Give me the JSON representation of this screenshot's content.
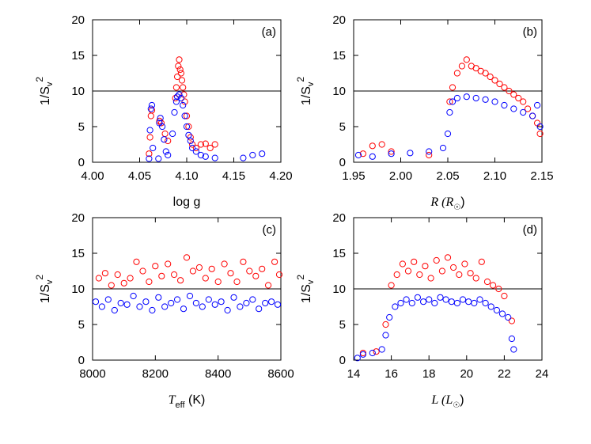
{
  "chart_data": [
    {
      "type": "scatter",
      "panel_label": "(a)",
      "xlabel": "log g",
      "ylabel": "1/S",
      "xlim": [
        4.0,
        4.2
      ],
      "ylim": [
        0,
        20
      ],
      "xticks": [
        4.0,
        4.05,
        4.1,
        4.15,
        4.2
      ],
      "xtick_labels": [
        "4.00",
        "4.05",
        "4.10",
        "4.15",
        "4.20"
      ],
      "yticks": [
        0,
        5,
        10,
        15,
        20
      ],
      "ytick_labels": [
        "0",
        "5",
        "10",
        "15",
        "20"
      ],
      "reference_line_y": 10,
      "series": [
        {
          "name": "red",
          "color": "#ff0000",
          "values": [
            [
              4.06,
              1.2
            ],
            [
              4.061,
              3.5
            ],
            [
              4.062,
              6.5
            ],
            [
              4.063,
              7.3
            ],
            [
              4.071,
              5.8
            ],
            [
              4.073,
              5.5
            ],
            [
              4.077,
              4.0
            ],
            [
              4.08,
              3.0
            ],
            [
              4.088,
              9.0
            ],
            [
              4.089,
              10.5
            ],
            [
              4.09,
              12.0
            ],
            [
              4.091,
              13.5
            ],
            [
              4.092,
              14.4
            ],
            [
              4.093,
              13.0
            ],
            [
              4.094,
              12.5
            ],
            [
              4.095,
              11.5
            ],
            [
              4.096,
              10.5
            ],
            [
              4.097,
              9.5
            ],
            [
              4.098,
              8.5
            ],
            [
              4.1,
              6.5
            ],
            [
              4.102,
              5.0
            ],
            [
              4.104,
              3.5
            ],
            [
              4.106,
              2.5
            ],
            [
              4.11,
              2.0
            ],
            [
              4.115,
              2.5
            ],
            [
              4.12,
              2.6
            ],
            [
              4.125,
              2.0
            ],
            [
              4.13,
              2.5
            ]
          ]
        },
        {
          "name": "blue",
          "color": "#0000ff",
          "values": [
            [
              4.06,
              0.5
            ],
            [
              4.061,
              4.5
            ],
            [
              4.062,
              7.5
            ],
            [
              4.063,
              8.0
            ],
            [
              4.064,
              2.0
            ],
            [
              4.07,
              0.5
            ],
            [
              4.071,
              5.5
            ],
            [
              4.072,
              6.2
            ],
            [
              4.074,
              5.0
            ],
            [
              4.076,
              3.2
            ],
            [
              4.078,
              1.5
            ],
            [
              4.08,
              1.0
            ],
            [
              4.085,
              4.0
            ],
            [
              4.087,
              7.0
            ],
            [
              4.089,
              8.5
            ],
            [
              4.09,
              9.2
            ],
            [
              4.092,
              9.5
            ],
            [
              4.094,
              9.0
            ],
            [
              4.096,
              8.0
            ],
            [
              4.098,
              6.5
            ],
            [
              4.1,
              5.0
            ],
            [
              4.102,
              3.8
            ],
            [
              4.104,
              3.0
            ],
            [
              4.106,
              2.0
            ],
            [
              4.11,
              1.5
            ],
            [
              4.115,
              1.0
            ],
            [
              4.12,
              0.8
            ],
            [
              4.13,
              0.6
            ],
            [
              4.16,
              0.6
            ],
            [
              4.17,
              1.0
            ],
            [
              4.18,
              1.2
            ]
          ]
        }
      ]
    },
    {
      "type": "scatter",
      "panel_label": "(b)",
      "xlabel": "R (R",
      "xlabel_sub": "☉",
      "ylabel": "1/S",
      "xlim": [
        1.95,
        2.15
      ],
      "ylim": [
        0,
        20
      ],
      "xticks": [
        1.95,
        2.0,
        2.05,
        2.1,
        2.15
      ],
      "xtick_labels": [
        "1.95",
        "2.00",
        "2.05",
        "2.10",
        "2.15"
      ],
      "yticks": [
        0,
        5,
        10,
        15,
        20
      ],
      "ytick_labels": [
        "0",
        "5",
        "10",
        "15",
        "20"
      ],
      "reference_line_y": 10,
      "series": [
        {
          "name": "red",
          "color": "#ff0000",
          "values": [
            [
              1.96,
              1.2
            ],
            [
              1.97,
              2.3
            ],
            [
              1.98,
              2.5
            ],
            [
              1.99,
              1.5
            ],
            [
              2.03,
              1.0
            ],
            [
              2.052,
              8.5
            ],
            [
              2.055,
              10.5
            ],
            [
              2.06,
              12.5
            ],
            [
              2.065,
              13.5
            ],
            [
              2.07,
              14.4
            ],
            [
              2.075,
              13.5
            ],
            [
              2.08,
              13.2
            ],
            [
              2.085,
              12.8
            ],
            [
              2.09,
              12.5
            ],
            [
              2.095,
              12.0
            ],
            [
              2.1,
              11.5
            ],
            [
              2.105,
              11.0
            ],
            [
              2.11,
              10.5
            ],
            [
              2.115,
              10.0
            ],
            [
              2.12,
              9.5
            ],
            [
              2.125,
              9.0
            ],
            [
              2.13,
              8.5
            ],
            [
              2.135,
              7.5
            ],
            [
              2.14,
              6.5
            ],
            [
              2.145,
              5.5
            ],
            [
              2.148,
              4.0
            ]
          ]
        },
        {
          "name": "blue",
          "color": "#0000ff",
          "values": [
            [
              1.955,
              1.0
            ],
            [
              1.97,
              0.8
            ],
            [
              1.99,
              1.2
            ],
            [
              2.01,
              1.3
            ],
            [
              2.03,
              1.5
            ],
            [
              2.045,
              2.0
            ],
            [
              2.05,
              4.0
            ],
            [
              2.052,
              7.0
            ],
            [
              2.055,
              8.5
            ],
            [
              2.06,
              9.0
            ],
            [
              2.07,
              9.2
            ],
            [
              2.08,
              9.0
            ],
            [
              2.09,
              8.8
            ],
            [
              2.1,
              8.5
            ],
            [
              2.11,
              8.0
            ],
            [
              2.12,
              7.5
            ],
            [
              2.13,
              7.0
            ],
            [
              2.14,
              6.5
            ],
            [
              2.145,
              8.0
            ],
            [
              2.148,
              5.0
            ]
          ]
        }
      ]
    },
    {
      "type": "scatter",
      "panel_label": "(c)",
      "xlabel": "T",
      "xlabel_sub": "eff",
      "xlabel_rest": " (K)",
      "ylabel": "1/S",
      "xlim": [
        8000,
        8600
      ],
      "ylim": [
        0,
        20
      ],
      "xticks": [
        8000,
        8200,
        8400,
        8600
      ],
      "xtick_labels": [
        "8000",
        "8200",
        "8400",
        "8600"
      ],
      "yticks": [
        0,
        5,
        10,
        15,
        20
      ],
      "ytick_labels": [
        "0",
        "5",
        "10",
        "15",
        "20"
      ],
      "reference_line_y": 10,
      "series": [
        {
          "name": "red",
          "color": "#ff0000",
          "values": [
            [
              8020,
              11.5
            ],
            [
              8040,
              12.2
            ],
            [
              8060,
              10.5
            ],
            [
              8080,
              12.0
            ],
            [
              8100,
              10.8
            ],
            [
              8120,
              11.5
            ],
            [
              8140,
              13.8
            ],
            [
              8160,
              12.5
            ],
            [
              8180,
              11.0
            ],
            [
              8200,
              13.2
            ],
            [
              8220,
              11.8
            ],
            [
              8240,
              13.5
            ],
            [
              8260,
              12.0
            ],
            [
              8280,
              11.2
            ],
            [
              8300,
              14.4
            ],
            [
              8320,
              12.5
            ],
            [
              8340,
              13.0
            ],
            [
              8360,
              11.5
            ],
            [
              8380,
              12.8
            ],
            [
              8400,
              11.0
            ],
            [
              8420,
              13.5
            ],
            [
              8440,
              12.2
            ],
            [
              8460,
              11.0
            ],
            [
              8480,
              13.8
            ],
            [
              8500,
              12.5
            ],
            [
              8520,
              11.8
            ],
            [
              8540,
              12.8
            ],
            [
              8560,
              10.5
            ],
            [
              8580,
              13.8
            ],
            [
              8595,
              12.0
            ]
          ]
        },
        {
          "name": "blue",
          "color": "#0000ff",
          "values": [
            [
              8010,
              8.2
            ],
            [
              8030,
              7.5
            ],
            [
              8050,
              8.5
            ],
            [
              8070,
              7.0
            ],
            [
              8090,
              8.0
            ],
            [
              8110,
              7.8
            ],
            [
              8130,
              9.0
            ],
            [
              8150,
              7.5
            ],
            [
              8170,
              8.2
            ],
            [
              8190,
              7.0
            ],
            [
              8210,
              8.8
            ],
            [
              8230,
              7.5
            ],
            [
              8250,
              8.0
            ],
            [
              8270,
              8.5
            ],
            [
              8290,
              7.2
            ],
            [
              8310,
              9.0
            ],
            [
              8330,
              8.0
            ],
            [
              8350,
              7.5
            ],
            [
              8370,
              8.5
            ],
            [
              8390,
              7.8
            ],
            [
              8410,
              8.2
            ],
            [
              8430,
              7.0
            ],
            [
              8450,
              8.8
            ],
            [
              8470,
              7.5
            ],
            [
              8490,
              8.0
            ],
            [
              8510,
              8.5
            ],
            [
              8530,
              7.2
            ],
            [
              8550,
              8.0
            ],
            [
              8570,
              8.2
            ],
            [
              8590,
              7.8
            ]
          ]
        }
      ]
    },
    {
      "type": "scatter",
      "panel_label": "(d)",
      "xlabel": "L (L",
      "xlabel_sub": "☉",
      "ylabel": "1/S",
      "xlim": [
        14,
        24
      ],
      "ylim": [
        0,
        20
      ],
      "xticks": [
        14,
        16,
        18,
        20,
        22,
        24
      ],
      "xtick_labels": [
        "14",
        "16",
        "18",
        "20",
        "22",
        "24"
      ],
      "yticks": [
        0,
        5,
        10,
        15,
        20
      ],
      "ytick_labels": [
        "0",
        "5",
        "10",
        "15",
        "20"
      ],
      "reference_line_y": 10,
      "series": [
        {
          "name": "red",
          "color": "#ff0000",
          "values": [
            [
              14.5,
              1.0
            ],
            [
              15.2,
              1.2
            ],
            [
              15.7,
              5.0
            ],
            [
              16.0,
              10.5
            ],
            [
              16.3,
              12.0
            ],
            [
              16.6,
              13.5
            ],
            [
              16.9,
              12.5
            ],
            [
              17.2,
              13.8
            ],
            [
              17.5,
              12.0
            ],
            [
              17.8,
              13.2
            ],
            [
              18.1,
              11.5
            ],
            [
              18.4,
              14.0
            ],
            [
              18.7,
              12.5
            ],
            [
              19.0,
              14.4
            ],
            [
              19.3,
              13.0
            ],
            [
              19.6,
              12.0
            ],
            [
              19.9,
              13.5
            ],
            [
              20.2,
              12.2
            ],
            [
              20.5,
              11.5
            ],
            [
              20.8,
              13.8
            ],
            [
              21.1,
              11.0
            ],
            [
              21.4,
              10.5
            ],
            [
              21.7,
              10.0
            ],
            [
              22.0,
              9.0
            ],
            [
              22.4,
              5.5
            ]
          ]
        },
        {
          "name": "blue",
          "color": "#0000ff",
          "values": [
            [
              14.2,
              0.3
            ],
            [
              14.5,
              0.8
            ],
            [
              15.0,
              1.0
            ],
            [
              15.5,
              1.5
            ],
            [
              15.7,
              3.5
            ],
            [
              15.9,
              6.0
            ],
            [
              16.2,
              7.5
            ],
            [
              16.5,
              8.0
            ],
            [
              16.8,
              8.5
            ],
            [
              17.1,
              8.0
            ],
            [
              17.4,
              8.8
            ],
            [
              17.7,
              8.2
            ],
            [
              18.0,
              8.5
            ],
            [
              18.3,
              8.0
            ],
            [
              18.6,
              8.8
            ],
            [
              18.9,
              8.5
            ],
            [
              19.2,
              8.2
            ],
            [
              19.5,
              8.0
            ],
            [
              19.8,
              8.5
            ],
            [
              20.1,
              8.2
            ],
            [
              20.4,
              8.0
            ],
            [
              20.7,
              8.5
            ],
            [
              21.0,
              8.0
            ],
            [
              21.3,
              7.5
            ],
            [
              21.6,
              7.0
            ],
            [
              21.9,
              6.5
            ],
            [
              22.2,
              6.0
            ],
            [
              22.4,
              3.0
            ],
            [
              22.5,
              1.5
            ]
          ]
        }
      ]
    }
  ]
}
